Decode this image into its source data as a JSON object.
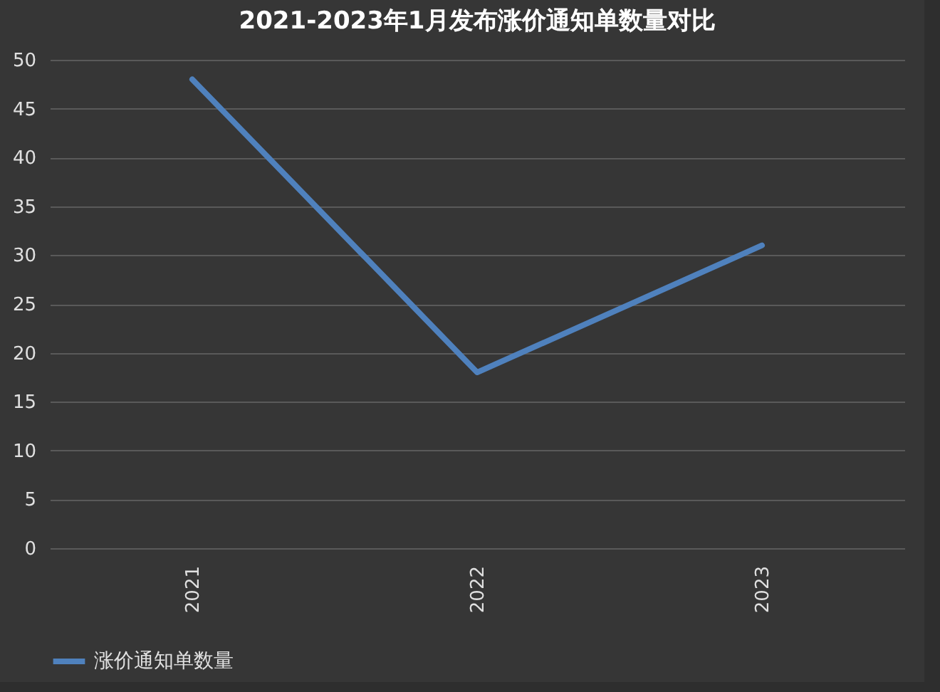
{
  "chart_data": {
    "type": "line",
    "title": "2021-2023年1月发布涨价通知单数量对比",
    "categories": [
      "2021",
      "2022",
      "2023"
    ],
    "series": [
      {
        "name": "涨价通知单数量",
        "color": "#4f81bd",
        "values": [
          48,
          18,
          31
        ]
      }
    ],
    "ylim": [
      0,
      50
    ],
    "yticks": [
      0,
      5,
      10,
      15,
      20,
      25,
      30,
      35,
      40,
      45,
      50
    ],
    "grid": "y",
    "legend": "bottom"
  }
}
